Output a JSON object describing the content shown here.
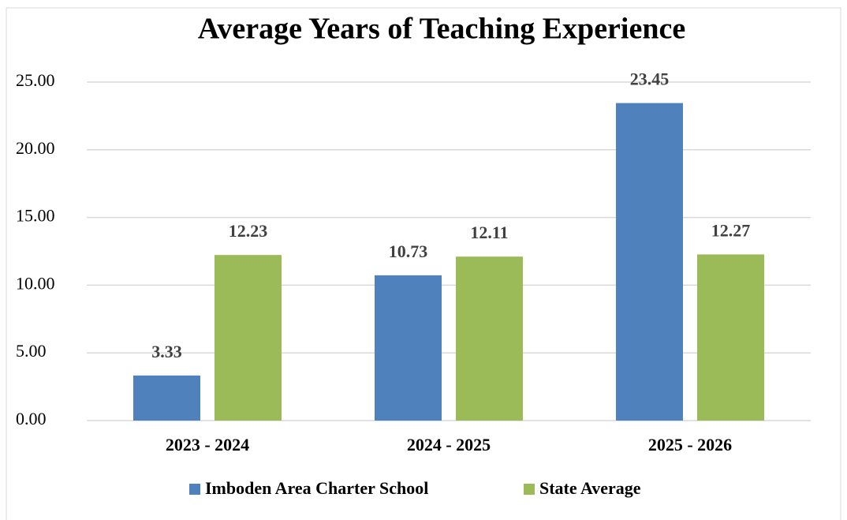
{
  "chart_data": {
    "type": "bar",
    "title": "Average Years of Teaching Experience",
    "categories": [
      "2023 - 2024",
      "2024 - 2025",
      "2025 - 2026"
    ],
    "series": [
      {
        "name": "Imboden Area Charter School",
        "color": "#4f81bd",
        "values": [
          3.33,
          10.73,
          23.45
        ]
      },
      {
        "name": "State Average",
        "color": "#9bbb59",
        "values": [
          12.23,
          12.11,
          12.27
        ]
      }
    ],
    "ylim": [
      0,
      25
    ],
    "yticks": [
      {
        "value": 0,
        "label": "0.00"
      },
      {
        "value": 5,
        "label": "5.00"
      },
      {
        "value": 10,
        "label": "10.00"
      },
      {
        "value": 15,
        "label": "15.00"
      },
      {
        "value": 20,
        "label": "20.00"
      },
      {
        "value": 25,
        "label": "25.00"
      }
    ],
    "grid": true,
    "legend": "bottom"
  }
}
